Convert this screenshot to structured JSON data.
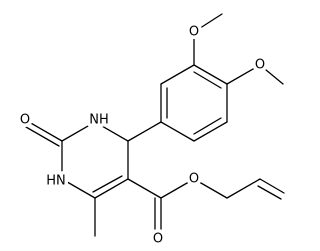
{
  "labels": [
    "O",
    "O",
    "NH",
    "O",
    "HN",
    "O",
    "O"
  ]
}
